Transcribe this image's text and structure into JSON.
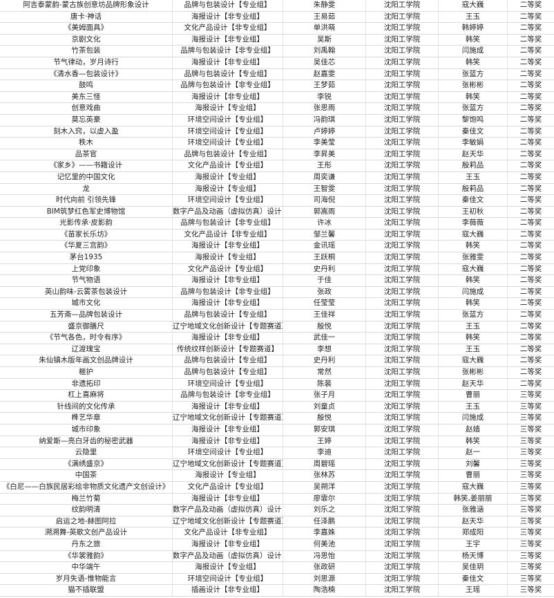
{
  "table": {
    "rows": [
      [
        "阿吉泰蒙韵-蒙古族创意坊品牌形象设计",
        "品牌与包装设计【专业组】",
        "朱静雯",
        "沈阳工学院",
        "寇大巍",
        "二等奖"
      ],
      [
        "唐卡·神话",
        "海报设计【非专业组】",
        "王易茹",
        "沈阳工学院",
        "王玉",
        "二等奖"
      ],
      [
        "《美姆面具》",
        "文化产品设计【非专业组】",
        "单洪萌",
        "沈阳工学院",
        "韩婷婷",
        "二等奖"
      ],
      [
        "京剧文化",
        "海报设计【非专业组】",
        "吴斯",
        "沈阳工学院",
        "韩笑",
        "二等奖"
      ],
      [
        "竹茶包装",
        "品牌与包装设计【非专业组】",
        "刘禹翰",
        "沈阳工学院",
        "闫施成",
        "二等奖"
      ],
      [
        "节气律动，岁月诗行",
        "海报设计【非专业组】",
        "吴佳芯",
        "沈阳工学院",
        "韩笑",
        "二等奖"
      ],
      [
        "《清水香—包装设计》",
        "品牌与包装设计【专业组】",
        "赵嘉雯",
        "沈阳工学院",
        "张蓝方",
        "二等奖"
      ],
      [
        "鼓鸣",
        "品牌与包装设计【非专业组】",
        "王梦茹",
        "沈阳工学院",
        "张彬彬",
        "二等奖"
      ],
      [
        "美东三怪",
        "海报设计【非专业组】",
        "李锐",
        "沈阳工学院",
        "韩笑",
        "二等奖"
      ],
      [
        "创意戏曲",
        "海报设计【专业组】",
        "张思雨",
        "沈阳工学院",
        "张蓝方",
        "二等奖"
      ],
      [
        "莫忘英豪",
        "环境空间设计【专业组】",
        "冯韵琪",
        "沈阳工学院",
        "黎饱鸣",
        "二等奖"
      ],
      [
        "刻木入窍，以虚入盈",
        "环境空间设计【专业组】",
        "卢婷婷",
        "沈阳工学院",
        "秦佳文",
        "二等奖"
      ],
      [
        "秩木",
        "环境空间设计【专业组】",
        "李美莹",
        "沈阳工学院",
        "李敏娟",
        "二等奖"
      ],
      [
        "品茶官",
        "品牌与包装设计【专业组】",
        "李昇美",
        "沈阳工学院",
        "赵天华",
        "二等奖"
      ],
      [
        "《家乡》——书籍设计",
        "文化产品设计【专业组】",
        "王彤",
        "沈阳工学院",
        "殷莉品",
        "二等奖"
      ],
      [
        "记忆里的中国文化",
        "海报设计【专业组】",
        "周奕谦",
        "沈阳工学院",
        "王玉",
        "二等奖"
      ],
      [
        "龙",
        "海报设计【专业组】",
        "王智雯",
        "沈阳工学院",
        "殷莉品",
        "二等奖"
      ],
      [
        "时代向前 引领先锋",
        "环境空间设计【专业组】",
        "司海倪",
        "沈阳工学院",
        "秦佳文",
        "二等奖"
      ],
      [
        "BIM筑梦红色军史博物馆",
        "数字产品及动画（虚拟仿真）设计【非",
        "郭嵩雨",
        "沈阳工学院",
        "王初秋",
        "二等奖"
      ],
      [
        "光影传承·皮影韵",
        "品牌与包装设计【非专业组】",
        "许冰",
        "沈阳工学院",
        "李薇薇",
        "二等奖"
      ],
      [
        "《苗家长乐坊》",
        "文化产品设计【非专业组】",
        "邹兰馨",
        "沈阳工学院",
        "寇大巍",
        "二等奖"
      ],
      [
        "《华夏三宫韵》",
        "海报设计【非专业组】",
        "金讯瑶",
        "沈阳工学院",
        "韩笑",
        "二等奖"
      ],
      [
        "茅台1935",
        "海报设计【专业组】",
        "王跃桐",
        "沈阳工学院",
        "张雅雯",
        "二等奖"
      ],
      [
        "上党印象",
        "文化产品设计【专业组】",
        "史丹利",
        "沈阳工学院",
        "寇大巍",
        "二等奖"
      ],
      [
        "节气物语",
        "海报设计【非专业组】",
        "于佳",
        "沈阳工学院",
        "韩笑",
        "二等奖"
      ],
      [
        "英山韵味-云雾茶包装设计",
        "品牌与包装设计【非专业组】",
        "张政",
        "沈阳工学院",
        "闫施成",
        "二等奖"
      ],
      [
        "城市文化",
        "海报设计【非专业组】",
        "任莹莹",
        "沈阳工学院",
        "韩笑",
        "二等奖"
      ],
      [
        "五芳斋—品牌包装设计",
        "品牌与包装设计【专业组】",
        "王佳祥",
        "沈阳工学院",
        "张蓝方",
        "二等奖"
      ],
      [
        "盛京御膳尺",
        "辽宁地域文化创新设计【专题赛道】",
        "殷悦",
        "沈阳工学院",
        "王玉",
        "二等奖"
      ],
      [
        "《节气各色，时令有序》",
        "海报设计【非专业组】",
        "武佳一",
        "沈阳工学院",
        "韩笑",
        "二等奖"
      ],
      [
        "辽渡瑰宝",
        "传统纹样创新设计【专题赛道】",
        "李想",
        "沈阳工学院",
        "王玉",
        "二等奖"
      ],
      [
        "朱仙镇木版年画文创品牌设计",
        "品牌与包装设计【专业组】",
        "史丹利",
        "沈阳工学院",
        "寇大巍",
        "二等奖"
      ],
      [
        "榧护",
        "品牌与包装设计【专业组】",
        "常然",
        "沈阳工学院",
        "张彬彬",
        "二等奖"
      ],
      [
        "非遗拓印",
        "环境空间设计【专业组】",
        "陈裴",
        "沈阳工学院",
        "赵天华",
        "二等奖"
      ],
      [
        "杠上喜麻将",
        "品牌与包装设计【非专业组】",
        "张子月",
        "沈阳工学院",
        "曹丽",
        "三等奖"
      ],
      [
        "针线间的文化传承",
        "海报设计【非专业组】",
        "刘童贞",
        "沈阳工学院",
        "王玉",
        "三等奖"
      ],
      [
        "榫艺华章",
        "辽宁地域文化创新设计【专题赛道】",
        "殷悦",
        "沈阳工学院",
        "闫施成",
        "三等奖"
      ],
      [
        "城市印象",
        "海报设计【非专业组】",
        "郭安琪",
        "沈阳工学院",
        "赵嫱",
        "三等奖"
      ],
      [
        "纳爱斯—亮白牙齿的秘密武器",
        "海报设计【非专业组】",
        "王婷",
        "沈阳工学院",
        "韩笑",
        "三等奖"
      ],
      [
        "云隐里",
        "环境空间设计【专业组】",
        "李迪",
        "沈阳工学院",
        "赵一",
        "三等奖"
      ],
      [
        "《满绣盛京》",
        "辽宁地域文化创新设计【专题赛道】",
        "周碧瑶",
        "沈阳工学院",
        "刘馨",
        "三等奖"
      ],
      [
        "中国茶",
        "海报设计【专业组】",
        "张林苏",
        "沈阳工学院",
        "曹丽",
        "三等奖"
      ],
      [
        "《白尼——白族民居彩绘非物质文化遗产文创设计》",
        "文化产品设计【专业组】",
        "吴朔洋",
        "沈阳工学院",
        "寇大巍",
        "三等奖"
      ],
      [
        "梅兰竹菊",
        "海报设计【非专业组】",
        "廖霏尔",
        "沈阳工学院",
        "韩笑,姜丽丽",
        "三等奖"
      ],
      [
        "纹韵明清",
        "数字产品及动画（虚拟仿真）设计【非",
        "刘乐之",
        "沈阳工学院",
        "张雅涵",
        "三等奖"
      ],
      [
        "启运之地-赫图阿拉",
        "辽宁地域文化创新设计【专题赛道】",
        "任泽鹏",
        "沈阳工学院",
        "赵天华",
        "三等奖"
      ],
      [
        "溯溯舞-英歌文创产品设计",
        "文化产品设计【非专业组】",
        "李嘉姝",
        "沈阳工学院",
        "郑成阳",
        "三等奖"
      ],
      [
        "丹东之旅",
        "海报设计【非专业组】",
        "何美池",
        "沈阳工学院",
        "王宇",
        "三等奖"
      ],
      [
        "《华裳雅韵》",
        "数字产品及动画（虚拟仿真）设计【非",
        "冯思怡",
        "沈阳工学院",
        "杨天博",
        "三等奖"
      ],
      [
        "中华端午",
        "海报设计【专业组】",
        "张政研",
        "沈阳工学院",
        "吴佳玥",
        "三等奖"
      ],
      [
        "岁月失语-惟物能言",
        "环境空间设计【专业组】",
        "刘思源",
        "沈阳工学院",
        "秦佳文",
        "三等奖"
      ],
      [
        "猫不插联盟",
        "插画设计【非专业组】",
        "陶浩楠",
        "沈阳工学院",
        "王瑶",
        "三等奖"
      ]
    ]
  }
}
